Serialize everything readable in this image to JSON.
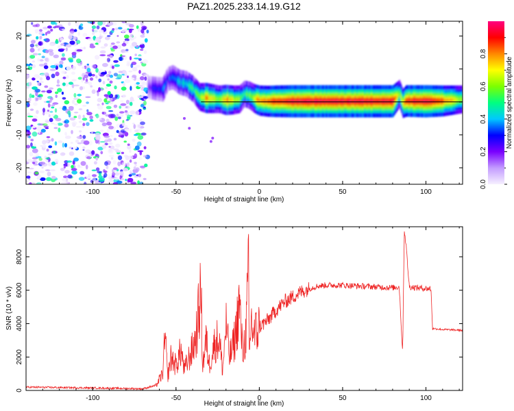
{
  "title": "PAZ1.2025.233.14.19.G12",
  "chart_data": [
    {
      "type": "heatmap",
      "xlabel": "Height of straight line (km)",
      "ylabel": "Frequency (Hz)",
      "xlim": [
        -140,
        122
      ],
      "ylim": [
        -25,
        24.5
      ],
      "xticks": [
        -100,
        -50,
        0,
        50,
        100
      ],
      "xtick_labels": [
        "-100",
        "-50",
        "0",
        "50",
        "100"
      ],
      "yticks": [
        -20,
        -10,
        0,
        10,
        20
      ],
      "ytick_labels": [
        "-20",
        "-10",
        "0",
        "10",
        "20"
      ],
      "colorbar": {
        "label": "Normalized spectral amplitude",
        "range": [
          0,
          1
        ],
        "ticks": [
          0.0,
          0.2,
          0.4,
          0.6,
          0.8
        ],
        "tick_labels": [
          "0.0",
          "0.2",
          "0.4",
          "0.6",
          "0.8"
        ],
        "colors": [
          "#f6f0ff",
          "#c39cff",
          "#7a00ff",
          "#0000ff",
          "#00c8ff",
          "#00ff80",
          "#7cff00",
          "#ffff00",
          "#ff8800",
          "#ff0000",
          "#ff0080"
        ]
      },
      "noise_region_x": [
        -140,
        -67
      ],
      "ridge": {
        "x": [
          -67,
          -62,
          -58,
          -55,
          -52,
          -48,
          -44,
          -40,
          -36,
          -32,
          -28,
          -24,
          -20,
          -16,
          -12,
          -9,
          -6,
          -3,
          0,
          5,
          10,
          20,
          40,
          60,
          80,
          84,
          86,
          88,
          100,
          110,
          122
        ],
        "freq": [
          4.5,
          4,
          3.8,
          7,
          7.5,
          6,
          5.5,
          4,
          1.5,
          1.2,
          1.0,
          0.8,
          0.6,
          0.6,
          0.8,
          2.5,
          2,
          1,
          0.4,
          0.2,
          0.2,
          0.2,
          0.2,
          0.2,
          0.2,
          2.5,
          -0.5,
          0.3,
          0.2,
          0.3,
          0.8
        ],
        "amp": [
          0.2,
          0.3,
          0.35,
          0.3,
          0.35,
          0.4,
          0.45,
          0.5,
          0.6,
          0.8,
          0.7,
          0.6,
          0.8,
          0.7,
          0.6,
          0.5,
          0.6,
          0.7,
          0.8,
          0.85,
          0.9,
          0.95,
          0.95,
          0.95,
          0.95,
          0.6,
          0.7,
          0.9,
          0.95,
          0.85,
          0.6
        ]
      }
    },
    {
      "type": "line",
      "xlabel": "Height of straight line (km)",
      "ylabel": "SNR (10 * v/v)",
      "xlim": [
        -140,
        122
      ],
      "ylim": [
        0,
        9800
      ],
      "xticks": [
        -100,
        -50,
        0,
        50,
        100
      ],
      "xtick_labels": [
        "-100",
        "-50",
        "0",
        "50",
        "100"
      ],
      "yticks": [
        0,
        2000,
        4000,
        6000,
        8000
      ],
      "ytick_labels": [
        "0",
        "2000",
        "4000",
        "6000",
        "8000"
      ],
      "line_color": "#ee2222",
      "series": [
        {
          "name": "SNR",
          "x": [
            -140,
            -100,
            -70,
            -62,
            -58,
            -56.5,
            -55,
            -53,
            -50,
            -47,
            -45,
            -42,
            -40,
            -38,
            -36,
            -35,
            -34,
            -32,
            -30,
            -28,
            -26,
            -24,
            -22,
            -20,
            -18,
            -16,
            -14,
            -12,
            -10,
            -8,
            -6.5,
            -6,
            -5,
            -3,
            0,
            5,
            10,
            15,
            20,
            25,
            30,
            35,
            40,
            50,
            60,
            70,
            80,
            84,
            86,
            87,
            88,
            90,
            95,
            100,
            103,
            104,
            105,
            110,
            122
          ],
          "values": [
            200,
            150,
            100,
            300,
            1000,
            3200,
            800,
            2000,
            1500,
            2400,
            1200,
            2000,
            2500,
            3200,
            5000,
            6000,
            1500,
            3000,
            1600,
            2400,
            3000,
            3000,
            1200,
            4000,
            2000,
            2500,
            3500,
            5300,
            2200,
            3500,
            7000,
            1800,
            4200,
            3300,
            3800,
            4200,
            4800,
            5300,
            5600,
            5900,
            6100,
            6250,
            6300,
            6300,
            6250,
            6200,
            6150,
            6200,
            2200,
            9600,
            8800,
            6200,
            6150,
            6100,
            6100,
            3700,
            3700,
            3650,
            3600
          ]
        }
      ]
    }
  ]
}
